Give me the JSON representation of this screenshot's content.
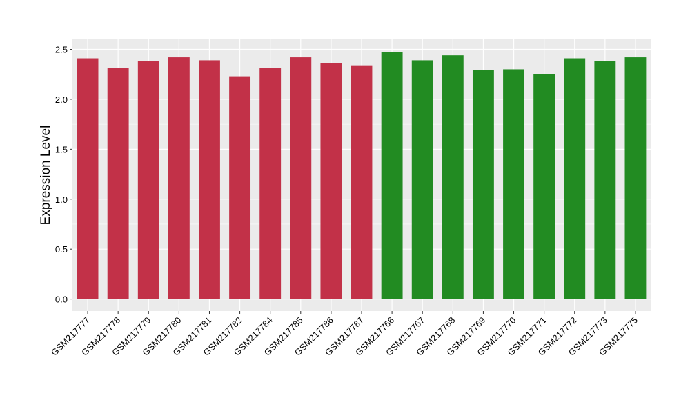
{
  "chart_data": {
    "type": "bar",
    "title": "",
    "xlabel": "",
    "ylabel": "Expression Level",
    "ylim": [
      -0.12,
      2.6
    ],
    "yticks": [
      0.0,
      0.5,
      1.0,
      1.5,
      2.0,
      2.5
    ],
    "ytick_labels": [
      "0.0",
      "0.5",
      "1.0",
      "1.5",
      "2.0",
      "2.5"
    ],
    "grid": true,
    "categories": [
      "GSM217777",
      "GSM217778",
      "GSM217779",
      "GSM217780",
      "GSM217781",
      "GSM217782",
      "GSM217784",
      "GSM217785",
      "GSM217786",
      "GSM217787",
      "GSM217766",
      "GSM217767",
      "GSM217768",
      "GSM217769",
      "GSM217770",
      "GSM217771",
      "GSM217772",
      "GSM217773",
      "GSM217775"
    ],
    "values": [
      2.41,
      2.31,
      2.38,
      2.42,
      2.39,
      2.23,
      2.31,
      2.42,
      2.36,
      2.34,
      2.47,
      2.39,
      2.44,
      2.29,
      2.3,
      2.25,
      2.41,
      2.38,
      2.42
    ],
    "groups": [
      0,
      0,
      0,
      0,
      0,
      0,
      0,
      0,
      0,
      0,
      1,
      1,
      1,
      1,
      1,
      1,
      1,
      1,
      1
    ],
    "colors": [
      "#C23148",
      "#228B22"
    ]
  }
}
